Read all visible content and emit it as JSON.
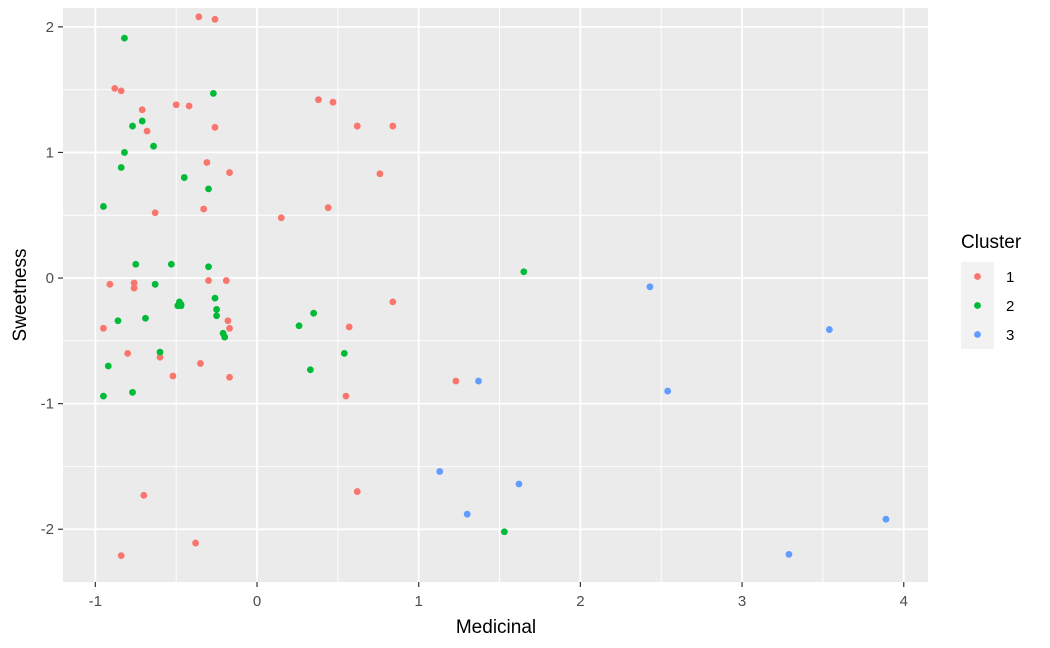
{
  "chart_data": {
    "type": "scatter",
    "xlabel": "Medicinal",
    "ylabel": "Sweetness",
    "xlim": [
      -1.2,
      4.15
    ],
    "ylim": [
      -2.42,
      2.15
    ],
    "x_ticks": [
      -1,
      0,
      1,
      2,
      3,
      4
    ],
    "y_ticks": [
      -2,
      -1,
      0,
      1,
      2
    ],
    "grid": true,
    "legend": {
      "title": "Cluster",
      "position": "right",
      "entries": [
        "1",
        "2",
        "3"
      ]
    },
    "series": [
      {
        "name": "1",
        "color": "#F8766D",
        "points": [
          [
            -0.95,
            -0.4
          ],
          [
            -0.91,
            -0.05
          ],
          [
            -0.88,
            1.51
          ],
          [
            -0.84,
            1.49
          ],
          [
            -0.84,
            -2.21
          ],
          [
            -0.8,
            -0.6
          ],
          [
            -0.76,
            -0.04
          ],
          [
            -0.76,
            -0.08
          ],
          [
            -0.71,
            1.34
          ],
          [
            -0.7,
            -1.73
          ],
          [
            -0.68,
            1.17
          ],
          [
            -0.63,
            0.52
          ],
          [
            -0.6,
            -0.63
          ],
          [
            -0.52,
            -0.78
          ],
          [
            -0.5,
            1.38
          ],
          [
            -0.42,
            1.37
          ],
          [
            -0.38,
            -2.11
          ],
          [
            -0.36,
            2.08
          ],
          [
            -0.35,
            -0.68
          ],
          [
            -0.33,
            0.55
          ],
          [
            -0.31,
            0.92
          ],
          [
            -0.3,
            -0.02
          ],
          [
            -0.26,
            2.06
          ],
          [
            -0.26,
            1.2
          ],
          [
            -0.19,
            -0.02
          ],
          [
            -0.18,
            -0.34
          ],
          [
            -0.17,
            -0.4
          ],
          [
            -0.17,
            0.84
          ],
          [
            -0.17,
            -0.79
          ],
          [
            0.15,
            0.48
          ],
          [
            0.38,
            1.42
          ],
          [
            0.44,
            0.56
          ],
          [
            0.47,
            1.4
          ],
          [
            0.55,
            -0.94
          ],
          [
            0.57,
            -0.39
          ],
          [
            0.62,
            1.21
          ],
          [
            0.62,
            -1.7
          ],
          [
            0.76,
            0.83
          ],
          [
            0.84,
            1.21
          ],
          [
            0.84,
            -0.19
          ],
          [
            1.23,
            -0.82
          ]
        ]
      },
      {
        "name": "2",
        "color": "#00BA38",
        "points": [
          [
            -0.95,
            0.57
          ],
          [
            -0.95,
            -0.94
          ],
          [
            -0.92,
            -0.7
          ],
          [
            -0.86,
            -0.34
          ],
          [
            -0.84,
            0.88
          ],
          [
            -0.82,
            1.0
          ],
          [
            -0.82,
            1.91
          ],
          [
            -0.77,
            1.21
          ],
          [
            -0.77,
            -0.91
          ],
          [
            -0.75,
            0.11
          ],
          [
            -0.71,
            1.25
          ],
          [
            -0.69,
            -0.32
          ],
          [
            -0.64,
            1.05
          ],
          [
            -0.63,
            -0.05
          ],
          [
            -0.6,
            -0.59
          ],
          [
            -0.53,
            0.11
          ],
          [
            -0.49,
            -0.22
          ],
          [
            -0.48,
            -0.19
          ],
          [
            -0.47,
            -0.21
          ],
          [
            -0.47,
            -0.22
          ],
          [
            -0.45,
            0.8
          ],
          [
            -0.3,
            0.71
          ],
          [
            -0.3,
            0.09
          ],
          [
            -0.27,
            1.47
          ],
          [
            -0.26,
            -0.16
          ],
          [
            -0.25,
            -0.25
          ],
          [
            -0.25,
            -0.3
          ],
          [
            -0.21,
            -0.44
          ],
          [
            -0.2,
            -0.47
          ],
          [
            0.26,
            -0.38
          ],
          [
            0.33,
            -0.73
          ],
          [
            0.35,
            -0.28
          ],
          [
            0.54,
            -0.6
          ],
          [
            1.53,
            -2.02
          ],
          [
            1.65,
            0.05
          ]
        ]
      },
      {
        "name": "3",
        "color": "#619CFF",
        "points": [
          [
            1.13,
            -1.54
          ],
          [
            1.3,
            -1.88
          ],
          [
            1.37,
            -0.82
          ],
          [
            1.62,
            -1.64
          ],
          [
            2.43,
            -0.07
          ],
          [
            2.54,
            -0.9
          ],
          [
            3.29,
            -2.2
          ],
          [
            3.54,
            -0.41
          ],
          [
            3.89,
            -1.92
          ]
        ]
      }
    ]
  }
}
